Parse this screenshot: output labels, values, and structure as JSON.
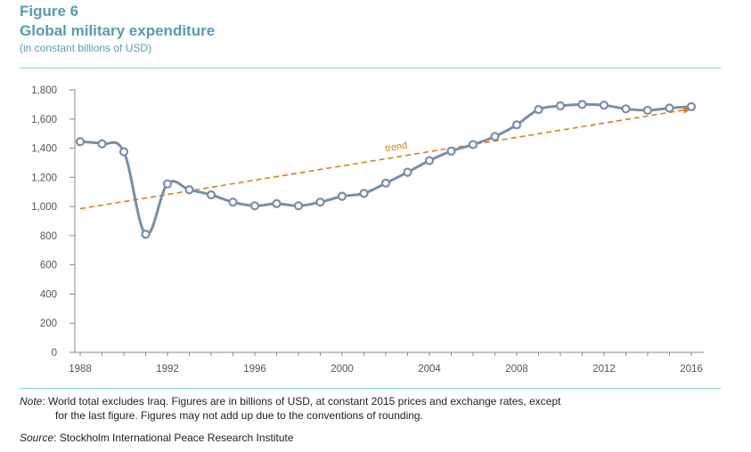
{
  "figure_label": "Figure 6",
  "note_label": "Note",
  "note_text_line1": ": World total excludes Iraq. Figures are in billions of USD, at constant 2015 prices and exchange rates, except",
  "note_text_line2": "for the last figure. Figures may not add up due to the conventions of rounding.",
  "source_label": "Source",
  "source_text": ": Stockholm International Peace Research Institute",
  "colors": {
    "title": "#5a9ab0",
    "series": "#7a8ea8",
    "trend": "#e07b1c",
    "rule": "#8ecfd0"
  },
  "chart_data": {
    "type": "line",
    "title": "Global military expenditure",
    "subtitle": "(in constant billions of USD)",
    "xlabel": "",
    "ylabel": "",
    "xlim": [
      1988,
      2016
    ],
    "ylim": [
      0,
      1800
    ],
    "x_ticks": [
      "1988",
      "1992",
      "1996",
      "2000",
      "2004",
      "2008",
      "2012",
      "2016"
    ],
    "x_tick_values": [
      1988,
      1992,
      1996,
      2000,
      2004,
      2008,
      2012,
      2016
    ],
    "y_ticks": [
      "0",
      "200",
      "400",
      "600",
      "800",
      "1,000",
      "1,200",
      "1,400",
      "1,600",
      "1,800"
    ],
    "y_tick_values": [
      0,
      200,
      400,
      600,
      800,
      1000,
      1200,
      1400,
      1600,
      1800
    ],
    "grid": false,
    "series": [
      {
        "name": "Global military expenditure",
        "x": [
          1988,
          1989,
          1990,
          1991,
          1992,
          1993,
          1994,
          1995,
          1996,
          1997,
          1998,
          1999,
          2000,
          2001,
          2002,
          2003,
          2004,
          2005,
          2006,
          2007,
          2008,
          2009,
          2010,
          2011,
          2012,
          2013,
          2014,
          2015,
          2016
        ],
        "values": [
          1445,
          1430,
          1375,
          810,
          1155,
          1115,
          1080,
          1030,
          1005,
          1020,
          1005,
          1030,
          1070,
          1090,
          1160,
          1235,
          1315,
          1380,
          1425,
          1480,
          1560,
          1665,
          1690,
          1700,
          1695,
          1670,
          1660,
          1675,
          1685
        ]
      }
    ],
    "trend": {
      "label": "trend",
      "from": {
        "x": 1988,
        "y": 985
      },
      "to": {
        "x": 2016,
        "y": 1670
      }
    }
  }
}
